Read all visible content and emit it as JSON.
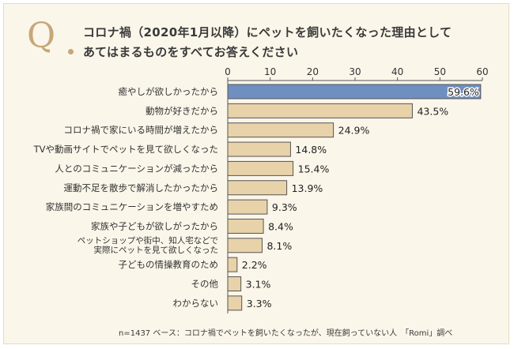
{
  "title": {
    "mark": "Q",
    "line1": "コロナ禍（2020年1月以降）にペットを飼いたくなった理由として",
    "line2": "あてはまるものをすべてお答えください"
  },
  "note": "n=1437 ベース：コロナ禍でペットを飼いたくなったが、現在飼っていない人　「Romi」調べ",
  "colors": {
    "highlight": "#6f8fc1",
    "bar": "#e8d2aa",
    "bar_border": "#555555",
    "background": "#fbf6ea"
  },
  "chart_data": {
    "type": "bar",
    "orientation": "horizontal",
    "categories": [
      "癒やしが欲しかったから",
      "動物が好きだから",
      "コロナ禍で家にいる時間が増えたから",
      "TVや動画サイトでペットを見て欲しくなった",
      "人とのコミュニケーションが減ったから",
      "運動不足を散歩で解消したかったから",
      "家族間のコミュニケーションを増やすため",
      "家族や子どもが欲しがったから",
      "ペットショップや街中、知人宅などで\n実際にペットを見て欲しくなった",
      "子どもの情操教育のため",
      "その他",
      "わからない"
    ],
    "values": [
      59.6,
      43.5,
      24.9,
      14.8,
      15.4,
      13.9,
      9.3,
      8.4,
      8.1,
      2.2,
      3.1,
      3.3
    ],
    "data_labels": [
      "59.6%",
      "43.5%",
      "24.9%",
      "14.8%",
      "15.4%",
      "13.9%",
      "9.3%",
      "8.4%",
      "8.1%",
      "2.2%",
      "3.1%",
      "3.3%"
    ],
    "xlim": [
      0,
      60
    ],
    "xticks": [
      "0",
      "10",
      "20",
      "30",
      "40",
      "50",
      "60"
    ],
    "highlight_index": 0,
    "grid": false,
    "legend": "none"
  }
}
